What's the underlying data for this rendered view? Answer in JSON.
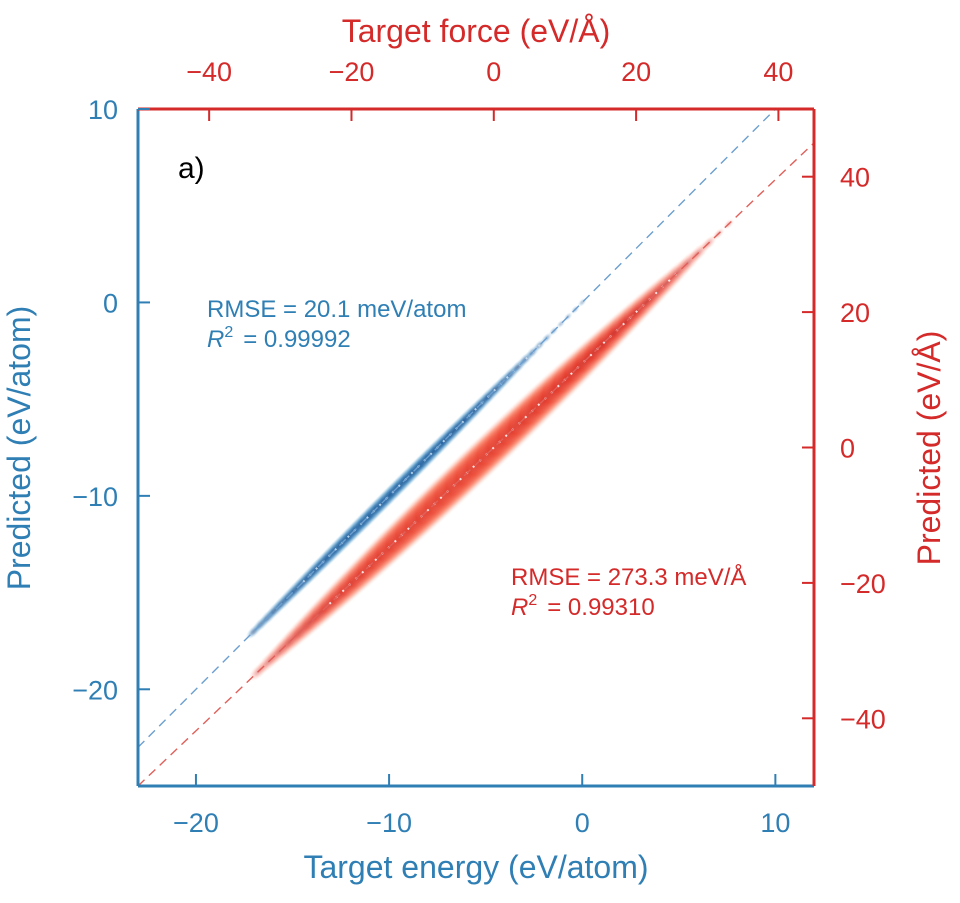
{
  "panel_label": "a)",
  "colors": {
    "energy": "#2f7fb5",
    "force": "#d42a2a",
    "energy_dark": "#08306b",
    "force_dark": "#a50f15"
  },
  "chart_data": {
    "type": "scatter",
    "subtype": "density parity plot (dual axes)",
    "panel_label": "a)",
    "energy": {
      "xlabel": "Target energy (eV/atom)",
      "ylabel": "Predicted (eV/atom)",
      "xlim": [
        -23,
        12
      ],
      "ylim": [
        -25,
        10
      ],
      "xticks": [
        -20,
        -10,
        0,
        10
      ],
      "xtick_labels": [
        "−20",
        "−10",
        "0",
        "10"
      ],
      "yticks": [
        -20,
        -10,
        0,
        10
      ],
      "ytick_labels": [
        "−20",
        "−10",
        "0",
        "10"
      ],
      "density_x_range": [
        -17,
        0
      ],
      "density_peak_x": -10,
      "annotation": {
        "rmse": "RMSE = 20.1 meV/atom",
        "r2_symbol": "R",
        "r2_exp": "2",
        "r2_value": "= 0.99992"
      }
    },
    "force": {
      "xlabel": "Target force (eV/Å)",
      "ylabel": "Predicted (eV/Å)",
      "xlim": [
        -50,
        45
      ],
      "ylim": [
        -50,
        50
      ],
      "xticks": [
        -40,
        -20,
        0,
        20,
        40
      ],
      "xtick_labels": [
        "−40",
        "−20",
        "0",
        "20",
        "40"
      ],
      "yticks": [
        -40,
        -20,
        0,
        20,
        40
      ],
      "ytick_labels": [
        "−40",
        "−20",
        "0",
        "20",
        "40"
      ],
      "density_x_range": [
        -33,
        33
      ],
      "density_peak_x": -2,
      "annotation": {
        "rmse": "RMSE = 273.3 meV/Å",
        "r2_symbol": "R",
        "r2_exp": "2",
        "r2_value": "= 0.99310"
      }
    },
    "reference_line": "y = x",
    "grid": false
  }
}
